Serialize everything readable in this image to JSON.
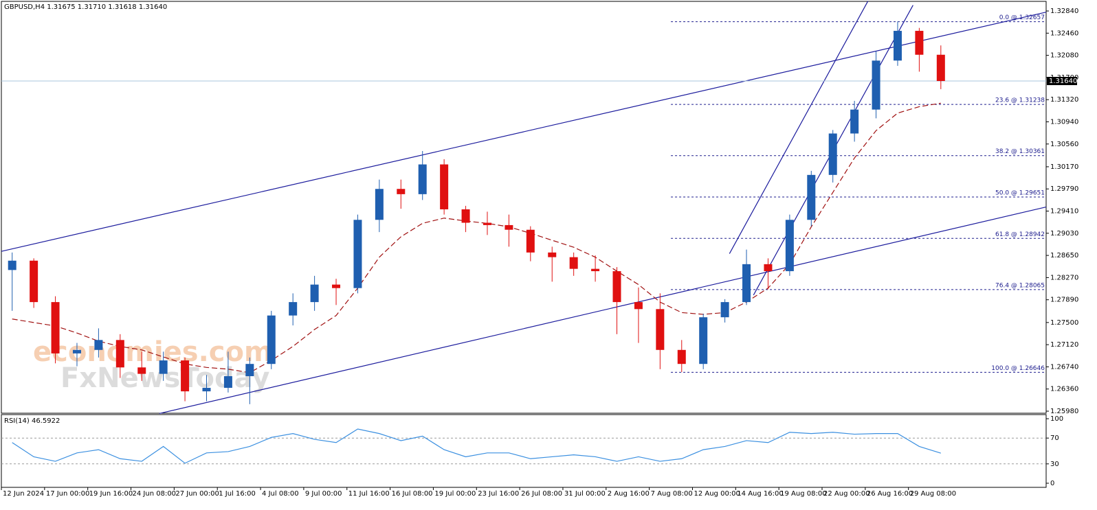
{
  "chart_data": {
    "type": "candlestick",
    "title": "GBPUSD,H4  1.31675 1.31710 1.31618 1.31640",
    "watermark": [
      "economies.com",
      "FxNewsToday"
    ],
    "xlim": [
      0,
      387
    ],
    "xticks": [
      {
        "value": 0,
        "label": "12 Jun 2024"
      },
      {
        "value": 16,
        "label": "17 Jun 00:00"
      },
      {
        "value": 32,
        "label": "19 Jun 16:00"
      },
      {
        "value": 48,
        "label": "24 Jun 08:00"
      },
      {
        "value": 64,
        "label": "27 Jun 00:00"
      },
      {
        "value": 80,
        "label": "1 Jul 16:00"
      },
      {
        "value": 96,
        "label": "4 Jul 08:00"
      },
      {
        "value": 112,
        "label": "9 Jul 00:00"
      },
      {
        "value": 128,
        "label": "11 Jul 16:00"
      },
      {
        "value": 144,
        "label": "16 Jul 08:00"
      },
      {
        "value": 160,
        "label": "19 Jul 00:00"
      },
      {
        "value": 176,
        "label": "23 Jul 16:00"
      },
      {
        "value": 192,
        "label": "26 Jul 08:00"
      },
      {
        "value": 208,
        "label": "31 Jul 00:00"
      },
      {
        "value": 224,
        "label": "2 Aug 16:00"
      },
      {
        "value": 240,
        "label": "7 Aug 08:00"
      },
      {
        "value": 256,
        "label": "12 Aug 00:00"
      },
      {
        "value": 272,
        "label": "14 Aug 16:00"
      },
      {
        "value": 288,
        "label": "19 Aug 08:00"
      },
      {
        "value": 304,
        "label": "22 Aug 00:00"
      },
      {
        "value": 320,
        "label": "26 Aug 16:00"
      },
      {
        "value": 336,
        "label": "29 Aug 08:00"
      }
    ],
    "ylim": [
      1.25945,
      1.33005
    ],
    "yticks": [
      {
        "value": 1.3284,
        "label": "1.32840"
      },
      {
        "value": 1.3246,
        "label": "1.32460"
      },
      {
        "value": 1.3208,
        "label": "1.32080"
      },
      {
        "value": 1.317,
        "label": "1.31700"
      },
      {
        "value": 1.3132,
        "label": "1.31320"
      },
      {
        "value": 1.3094,
        "label": "1.30940"
      },
      {
        "value": 1.3056,
        "label": "1.30560"
      },
      {
        "value": 1.3017,
        "label": "1.30170"
      },
      {
        "value": 1.2979,
        "label": "1.29790"
      },
      {
        "value": 1.2941,
        "label": "1.29410"
      },
      {
        "value": 1.2903,
        "label": "1.29030"
      },
      {
        "value": 1.2865,
        "label": "1.28650"
      },
      {
        "value": 1.2827,
        "label": "1.28270"
      },
      {
        "value": 1.2789,
        "label": "1.27890"
      },
      {
        "value": 1.275,
        "label": "1.27500"
      },
      {
        "value": 1.2712,
        "label": "1.27120"
      },
      {
        "value": 1.2674,
        "label": "1.26740"
      },
      {
        "value": 1.2636,
        "label": "1.26360"
      },
      {
        "value": 1.2598,
        "label": "1.25980"
      }
    ],
    "up_color": "#1f5fb0",
    "down_color": "#e01010",
    "x": [
      4,
      12,
      20,
      28,
      36,
      44,
      52,
      60,
      68,
      76,
      84,
      92,
      100,
      108,
      116,
      124,
      132,
      140,
      148,
      156,
      164,
      172,
      180,
      188,
      196,
      204,
      212,
      220,
      228,
      236,
      244,
      252,
      260,
      268,
      276,
      284,
      292,
      300,
      308,
      316,
      324,
      332,
      340,
      348
    ],
    "open": [
      1.284,
      1.2856,
      1.2785,
      1.2697,
      1.2703,
      1.272,
      1.2673,
      1.2662,
      1.2685,
      1.2632,
      1.2638,
      1.2658,
      1.2679,
      1.2762,
      1.2785,
      1.2815,
      1.2809,
      1.2926,
      1.2979,
      1.297,
      1.3021,
      1.2944,
      1.2921,
      1.2917,
      1.2909,
      1.287,
      1.2862,
      1.2842,
      1.2838,
      1.2785,
      1.2773,
      1.2703,
      1.2679,
      1.2759,
      1.2785,
      1.285,
      1.2838,
      1.2926,
      1.3003,
      1.3074,
      1.3115,
      1.3199,
      1.325,
      1.3209
    ],
    "high": [
      1.287,
      1.286,
      1.2795,
      1.2715,
      1.274,
      1.273,
      1.27,
      1.27,
      1.269,
      1.266,
      1.27,
      1.269,
      1.277,
      1.28,
      1.283,
      1.2825,
      1.2935,
      1.2995,
      1.2995,
      1.3044,
      1.303,
      1.295,
      1.294,
      1.2935,
      1.2915,
      1.288,
      1.287,
      1.2865,
      1.2845,
      1.281,
      1.28,
      1.272,
      1.2765,
      1.279,
      1.2875,
      1.286,
      1.2935,
      1.301,
      1.308,
      1.313,
      1.3215,
      1.3266,
      1.3255,
      1.3225
    ],
    "low": [
      1.277,
      1.2775,
      1.268,
      1.2675,
      1.269,
      1.2655,
      1.265,
      1.265,
      1.2615,
      1.2615,
      1.263,
      1.261,
      1.267,
      1.2745,
      1.277,
      1.278,
      1.28,
      1.2905,
      1.2945,
      1.296,
      1.2935,
      1.2905,
      1.29,
      1.288,
      1.2855,
      1.282,
      1.283,
      1.282,
      1.273,
      1.2715,
      1.267,
      1.2665,
      1.267,
      1.275,
      1.278,
      1.2807,
      1.283,
      1.2915,
      1.299,
      1.306,
      1.31,
      1.319,
      1.318,
      1.315
    ],
    "close": [
      1.2856,
      1.2785,
      1.2697,
      1.2703,
      1.272,
      1.2673,
      1.2662,
      1.2685,
      1.2632,
      1.2638,
      1.2658,
      1.2679,
      1.2762,
      1.2785,
      1.2815,
      1.2809,
      1.2926,
      1.2979,
      1.297,
      1.3021,
      1.2944,
      1.2921,
      1.2917,
      1.2909,
      1.287,
      1.2862,
      1.2842,
      1.2838,
      1.2785,
      1.2773,
      1.2703,
      1.2679,
      1.2759,
      1.2785,
      1.285,
      1.2838,
      1.2926,
      1.3003,
      1.3074,
      1.3115,
      1.3199,
      1.325,
      1.3209,
      1.3164
    ],
    "moving_average": {
      "color": "#a01010",
      "values": [
        1.2756,
        1.275,
        1.2744,
        1.2732,
        1.2718,
        1.2709,
        1.2703,
        1.2691,
        1.2679,
        1.2673,
        1.267,
        1.2664,
        1.2685,
        1.2709,
        1.2738,
        1.2762,
        1.2809,
        1.2862,
        1.2897,
        1.292,
        1.2929,
        1.2924,
        1.292,
        1.2914,
        1.2903,
        1.2891,
        1.2879,
        1.2862,
        1.2838,
        1.2815,
        1.2785,
        1.2767,
        1.2764,
        1.2767,
        1.2785,
        1.2809,
        1.285,
        1.2914,
        1.2973,
        1.3032,
        1.3079,
        1.3109,
        1.312,
        1.3126
      ]
    },
    "last_price": {
      "value": 1.3164,
      "label": "1.31640"
    },
    "fibonacci": {
      "color": "#1a1a8c",
      "x_start": 248,
      "levels": [
        {
          "value": 1.32657,
          "label": "0.0 @ 1.32657"
        },
        {
          "value": 1.31238,
          "label": "23.6 @ 1.31238"
        },
        {
          "value": 1.30361,
          "label": "38.2 @ 1.30361"
        },
        {
          "value": 1.29651,
          "label": "50.0 @ 1.29651"
        },
        {
          "value": 1.28942,
          "label": "61.8 @ 1.28942"
        },
        {
          "value": 1.28065,
          "label": "76.4 @ 1.28065"
        },
        {
          "value": 1.26646,
          "label": "100.0 @ 1.26646"
        }
      ]
    },
    "trendline_color": "#1a1a9c",
    "trendlines": [
      {
        "x": [
          0,
          387
        ],
        "y": [
          1.2872,
          1.3282
        ]
      },
      {
        "x": [
          58.5,
          387
        ],
        "y": [
          1.2594,
          1.2948
        ]
      },
      {
        "x": [
          269.7,
          321
        ],
        "y": [
          1.2868,
          1.3301
        ]
      },
      {
        "x": [
          278.6,
          337.7
        ],
        "y": [
          1.2797,
          1.3294
        ]
      }
    ],
    "indicator": {
      "type": "line",
      "title": "RSI(14) 46.5922",
      "color": "#3a8fe0",
      "ylim": [
        0,
        100
      ],
      "yticks": [
        0,
        30,
        70,
        100
      ],
      "levels": [
        30,
        70
      ],
      "values": [
        63,
        41,
        34,
        47,
        52,
        38,
        34,
        57,
        31,
        47,
        49,
        57,
        71,
        77,
        68,
        63,
        84,
        77,
        66,
        73,
        52,
        41,
        47,
        47,
        38,
        41,
        44,
        41,
        34,
        41,
        34,
        38,
        52,
        57,
        66,
        63,
        79,
        77,
        79,
        76,
        77,
        77,
        57,
        46.5922
      ]
    }
  }
}
